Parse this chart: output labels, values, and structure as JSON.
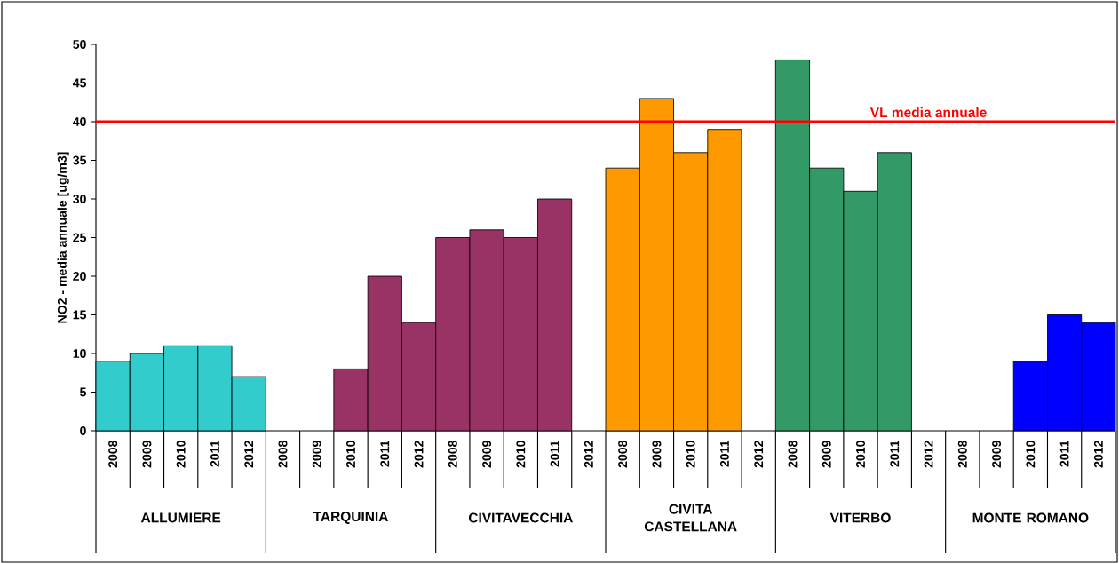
{
  "chart_data": {
    "type": "bar",
    "ylabel": "NO2 - media annuale [ug/m3]",
    "categories": [
      "2008",
      "2009",
      "2010",
      "2011",
      "2012",
      "2008",
      "2009",
      "2010",
      "2011",
      "2012",
      "2008",
      "2009",
      "2010",
      "2011",
      "2012",
      "2008",
      "2009",
      "2010",
      "2011",
      "2012",
      "2008",
      "2009",
      "2010",
      "2011",
      "2012",
      "2008",
      "2009",
      "2010",
      "2011",
      "2012"
    ],
    "series": [
      {
        "color": "#33cccc",
        "values": [
          9,
          10,
          11,
          11,
          7,
          null,
          null,
          null,
          null,
          null,
          null,
          null,
          null,
          null,
          null,
          null,
          null,
          null,
          null,
          null,
          null,
          null,
          null,
          null,
          null,
          null,
          null,
          null,
          null,
          null
        ]
      },
      {
        "color": "#993366",
        "values": [
          null,
          null,
          null,
          null,
          null,
          null,
          null,
          8,
          20,
          14,
          25,
          26,
          25,
          30,
          null,
          null,
          null,
          null,
          null,
          null,
          null,
          null,
          null,
          null,
          null,
          null,
          null,
          null,
          null,
          null
        ]
      },
      {
        "color": "#ff9900",
        "values": [
          null,
          null,
          null,
          null,
          null,
          null,
          null,
          null,
          null,
          null,
          null,
          null,
          null,
          null,
          null,
          34,
          43,
          36,
          39,
          null,
          null,
          null,
          null,
          null,
          null,
          null,
          null,
          null,
          null,
          null
        ]
      },
      {
        "color": "#339966",
        "values": [
          null,
          null,
          null,
          null,
          null,
          null,
          null,
          null,
          null,
          null,
          null,
          null,
          null,
          null,
          null,
          null,
          null,
          null,
          null,
          null,
          48,
          34,
          31,
          36,
          null,
          null,
          null,
          null,
          null,
          null
        ]
      },
      {
        "color": "#0000ff",
        "values": [
          null,
          null,
          null,
          null,
          null,
          null,
          null,
          null,
          null,
          null,
          null,
          null,
          null,
          null,
          null,
          null,
          null,
          null,
          null,
          null,
          null,
          null,
          null,
          null,
          null,
          null,
          null,
          9,
          15,
          14
        ]
      }
    ],
    "ylim": [
      0,
      50
    ],
    "yticks": [
      0,
      5,
      10,
      15,
      20,
      25,
      30,
      35,
      40,
      45,
      50
    ],
    "ref_lines": [
      {
        "axis": "y",
        "value": 40,
        "label": "VL media annuale",
        "color": "#ff0000"
      }
    ],
    "annotations": [
      "ALLUMIERE",
      "TARQUINIA",
      "CIVITAVECCHIA",
      "CIVITA CASTELLANA",
      "VITERBO",
      "MONTE ROMANO"
    ],
    "grid": false
  }
}
